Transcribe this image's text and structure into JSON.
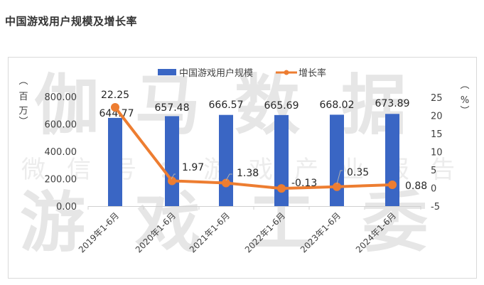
{
  "page": {
    "title": "中国游戏用户规模及增长率"
  },
  "colors": {
    "bar": "#3a66c4",
    "line": "#ed7d31",
    "axis_text": "#404040",
    "watermark": "#e6e6e6"
  },
  "watermark": {
    "line1": "伽马数据",
    "line2": "微信号：游戏产业报告",
    "line3": "游戏工委"
  },
  "chart_data": {
    "type": "bar",
    "title": "中国游戏用户规模及增长率",
    "categories": [
      "2019年1-6月",
      "2020年1-6月",
      "2021年1-6月",
      "2022年1-6月",
      "2023年1-6月",
      "2024年1-6月"
    ],
    "series": [
      {
        "name": "中国游戏用户规模",
        "type": "bar",
        "axis": "left",
        "values": [
          644.77,
          657.48,
          666.57,
          665.69,
          668.02,
          673.89
        ],
        "labels": [
          "644.77",
          "657.48",
          "666.57",
          "665.69",
          "668.02",
          "673.89"
        ]
      },
      {
        "name": "增长率",
        "type": "line",
        "axis": "right",
        "values": [
          22.25,
          1.97,
          1.38,
          -0.13,
          0.35,
          0.88
        ],
        "labels": [
          "22.25",
          "1.97",
          "1.38",
          "-0.13",
          "0.35",
          "0.88"
        ]
      }
    ],
    "ylabel_left": "（百万）",
    "ylabel_right": "（%）",
    "ylim_left": [
      0,
      800
    ],
    "yticks_left": [
      "0.00",
      "200.00",
      "400.00",
      "600.00",
      "800.00"
    ],
    "ylim_right": [
      -5,
      25
    ],
    "yticks_right": [
      "-5",
      "0",
      "5",
      "10",
      "15",
      "20",
      "25"
    ],
    "legend_position": "top",
    "grid": false
  }
}
